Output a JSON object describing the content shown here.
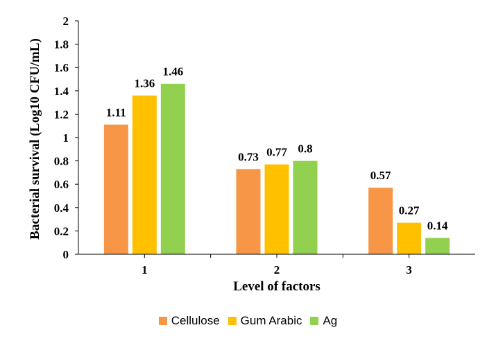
{
  "chart_data": {
    "type": "bar",
    "categories": [
      "1",
      "2",
      "3"
    ],
    "series": [
      {
        "name": "Cellulose",
        "color": "#F79646",
        "values": [
          1.11,
          0.73,
          0.57
        ],
        "labels": [
          "1.11",
          "0.73",
          "0.57"
        ]
      },
      {
        "name": "Gum Arabic",
        "color": "#FFC000",
        "values": [
          1.36,
          0.77,
          0.27
        ],
        "labels": [
          "1.36",
          "0.77",
          "0.27"
        ]
      },
      {
        "name": "Ag",
        "color": "#92D050",
        "values": [
          1.46,
          0.8,
          0.14
        ],
        "labels": [
          "1.46",
          "0.8",
          "0.14"
        ]
      }
    ],
    "xlabel": "Level of factors",
    "ylabel": "Bacterial survival (Log10 CFU/mL)",
    "ylim": [
      0,
      2
    ],
    "yticks": [
      "0",
      "0.2",
      "0.4",
      "0.6",
      "0.8",
      "1",
      "1.2",
      "1.4",
      "1.6",
      "1.8",
      "2"
    ],
    "legend_position": "bottom",
    "grid": false
  }
}
